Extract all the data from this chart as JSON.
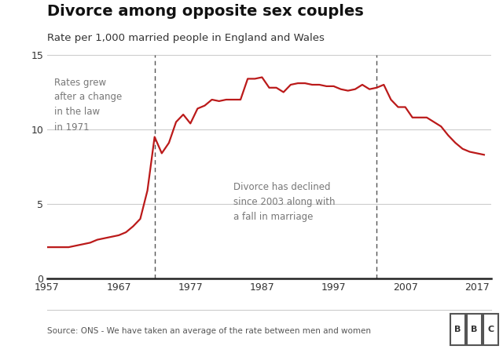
{
  "title": "Divorce among opposite sex couples",
  "subtitle": "Rate per 1,000 married people in England and Wales",
  "source": "Source: ONS - We have taken an average of the rate between men and women",
  "line_color": "#bb1a1a",
  "background_color": "#ffffff",
  "vline1_year": 1972,
  "vline2_year": 2003,
  "annotation1_text": "Rates grew\nafter a change\nin the law\nin 1971",
  "annotation2_text": "Divorce has declined\nsince 2003 along with\na fall in marriage",
  "xlim": [
    1957,
    2019
  ],
  "ylim": [
    0,
    15
  ],
  "yticks": [
    0,
    5,
    10,
    15
  ],
  "xticks": [
    1957,
    1967,
    1977,
    1987,
    1997,
    2007,
    2017
  ],
  "years": [
    1957,
    1958,
    1959,
    1960,
    1961,
    1962,
    1963,
    1964,
    1965,
    1966,
    1967,
    1968,
    1969,
    1970,
    1971,
    1972,
    1973,
    1974,
    1975,
    1976,
    1977,
    1978,
    1979,
    1980,
    1981,
    1982,
    1983,
    1984,
    1985,
    1986,
    1987,
    1988,
    1989,
    1990,
    1991,
    1992,
    1993,
    1994,
    1995,
    1996,
    1997,
    1998,
    1999,
    2000,
    2001,
    2002,
    2003,
    2004,
    2005,
    2006,
    2007,
    2008,
    2009,
    2010,
    2011,
    2012,
    2013,
    2014,
    2015,
    2016,
    2017,
    2018
  ],
  "values": [
    2.1,
    2.1,
    2.1,
    2.1,
    2.2,
    2.3,
    2.4,
    2.6,
    2.7,
    2.8,
    2.9,
    3.1,
    3.5,
    4.0,
    5.9,
    9.5,
    8.4,
    9.1,
    10.5,
    11.0,
    10.4,
    11.4,
    11.6,
    12.0,
    11.9,
    12.0,
    12.0,
    12.0,
    13.4,
    13.4,
    13.5,
    12.8,
    12.8,
    12.5,
    13.0,
    13.1,
    13.1,
    13.0,
    13.0,
    12.9,
    12.9,
    12.7,
    12.6,
    12.7,
    13.0,
    12.7,
    12.8,
    13.0,
    12.0,
    11.5,
    11.5,
    10.8,
    10.8,
    10.8,
    10.5,
    10.2,
    9.6,
    9.1,
    8.7,
    8.5,
    8.4,
    8.3
  ]
}
